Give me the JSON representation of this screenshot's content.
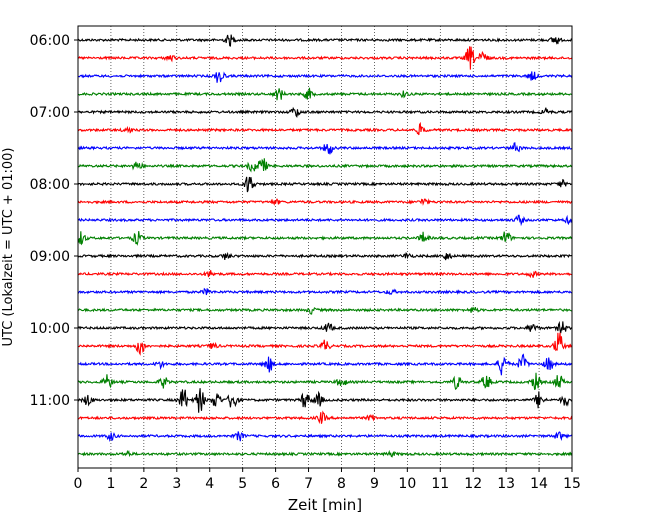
{
  "chart_data": {
    "type": "line",
    "title": "",
    "xlabel": "Zeit  [min]",
    "ylabel": "UTC (Lokalzeit = UTC + 01:00)",
    "xlim": [
      0,
      15
    ],
    "x_ticks": [
      0,
      1,
      2,
      3,
      4,
      5,
      6,
      7,
      8,
      9,
      10,
      11,
      12,
      13,
      14,
      15
    ],
    "y_ticks": [
      "06:00",
      "07:00",
      "08:00",
      "09:00",
      "10:00",
      "11:00"
    ],
    "y_start": "06:00",
    "trace_interval_min": 15,
    "grid": "vertical dotted lines at each minute",
    "trace_color_cycle": [
      "#000000",
      "#ff0000",
      "#0000ff",
      "#008000"
    ],
    "traces": [
      {
        "start": "06:00",
        "events": [
          [
            4.6,
            1.0
          ],
          [
            14.5,
            0.9
          ]
        ]
      },
      {
        "start": "06:15",
        "events": [
          [
            11.9,
            2.2
          ],
          [
            12.3,
            1.2
          ],
          [
            2.8,
            0.6
          ]
        ]
      },
      {
        "start": "06:30",
        "events": [
          [
            4.3,
            1.6
          ],
          [
            13.8,
            0.8
          ]
        ]
      },
      {
        "start": "06:45",
        "events": [
          [
            6.1,
            1.2
          ],
          [
            7.0,
            1.0
          ],
          [
            9.9,
            0.5
          ]
        ]
      },
      {
        "start": "07:00",
        "events": [
          [
            6.6,
            0.9
          ],
          [
            14.2,
            0.6
          ]
        ]
      },
      {
        "start": "07:15",
        "events": [
          [
            10.4,
            1.0
          ],
          [
            1.5,
            0.5
          ]
        ]
      },
      {
        "start": "07:30",
        "events": [
          [
            7.6,
            1.3
          ],
          [
            13.3,
            0.9
          ]
        ]
      },
      {
        "start": "07:45",
        "events": [
          [
            1.8,
            0.9
          ],
          [
            5.6,
            1.6
          ],
          [
            5.3,
            1.0
          ]
        ]
      },
      {
        "start": "08:00",
        "events": [
          [
            5.2,
            2.1
          ],
          [
            14.7,
            0.6
          ]
        ]
      },
      {
        "start": "08:15",
        "events": [
          [
            10.5,
            0.6
          ],
          [
            6.0,
            0.4
          ]
        ]
      },
      {
        "start": "08:30",
        "events": [
          [
            13.4,
            0.8
          ],
          [
            14.9,
            0.5
          ]
        ]
      },
      {
        "start": "08:45",
        "events": [
          [
            0.1,
            1.2
          ],
          [
            1.8,
            1.2
          ],
          [
            10.5,
            1.0
          ],
          [
            13.0,
            1.3
          ]
        ]
      },
      {
        "start": "09:00",
        "events": [
          [
            4.5,
            0.6
          ],
          [
            11.2,
            0.7
          ],
          [
            10.0,
            0.5
          ]
        ]
      },
      {
        "start": "09:15",
        "events": [
          [
            4.0,
            0.6
          ],
          [
            13.8,
            0.5
          ]
        ]
      },
      {
        "start": "09:30",
        "events": [
          [
            3.9,
            0.5
          ],
          [
            9.5,
            0.4
          ]
        ]
      },
      {
        "start": "09:45",
        "events": [
          [
            7.1,
            0.6
          ],
          [
            12.0,
            0.5
          ]
        ]
      },
      {
        "start": "10:00",
        "events": [
          [
            7.6,
            0.9
          ],
          [
            13.8,
            0.9
          ],
          [
            14.7,
            1.2
          ]
        ]
      },
      {
        "start": "10:15",
        "events": [
          [
            1.9,
            1.6
          ],
          [
            7.5,
            1.1
          ],
          [
            14.6,
            2.6
          ],
          [
            4.1,
            0.5
          ]
        ]
      },
      {
        "start": "10:30",
        "events": [
          [
            5.8,
            1.4
          ],
          [
            12.9,
            2.2
          ],
          [
            13.5,
            1.6
          ],
          [
            14.3,
            1.3
          ],
          [
            2.5,
            0.6
          ]
        ]
      },
      {
        "start": "10:45",
        "events": [
          [
            0.9,
            1.3
          ],
          [
            2.6,
            1.0
          ],
          [
            8.0,
            1.0
          ],
          [
            11.5,
            1.2
          ],
          [
            12.4,
            1.4
          ],
          [
            13.9,
            1.5
          ],
          [
            14.6,
            1.4
          ]
        ]
      },
      {
        "start": "11:00",
        "events": [
          [
            0.3,
            1.0
          ],
          [
            3.2,
            2.2
          ],
          [
            3.7,
            2.4
          ],
          [
            4.2,
            1.6
          ],
          [
            4.7,
            2.0
          ],
          [
            6.9,
            1.6
          ],
          [
            7.3,
            1.2
          ],
          [
            14.0,
            1.5
          ],
          [
            14.8,
            1.0
          ]
        ]
      },
      {
        "start": "11:15",
        "events": [
          [
            7.4,
            1.0
          ],
          [
            8.9,
            0.5
          ]
        ]
      },
      {
        "start": "11:30",
        "events": [
          [
            1.0,
            0.7
          ],
          [
            4.9,
            0.8
          ],
          [
            14.6,
            0.7
          ]
        ]
      },
      {
        "start": "11:45",
        "events": [
          [
            1.5,
            0.4
          ],
          [
            9.5,
            0.4
          ]
        ]
      }
    ]
  }
}
